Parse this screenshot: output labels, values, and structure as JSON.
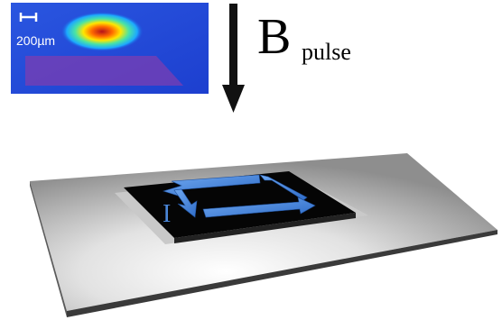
{
  "inset": {
    "scale_bar_label": "200µm"
  },
  "field": {
    "symbol": "B",
    "subscript": "pulse"
  },
  "device": {
    "current_label": "I"
  },
  "colors": {
    "field_arrow": "#111111",
    "current_arrows": "#3f7fd8",
    "chip": "#050505",
    "substrate_light": "#f7f7f7",
    "substrate_dark": "#8a8a8a",
    "inset_background": "#1f49d6",
    "sample_overlay": "#7b3db2",
    "hotspot": "#c4161c"
  }
}
